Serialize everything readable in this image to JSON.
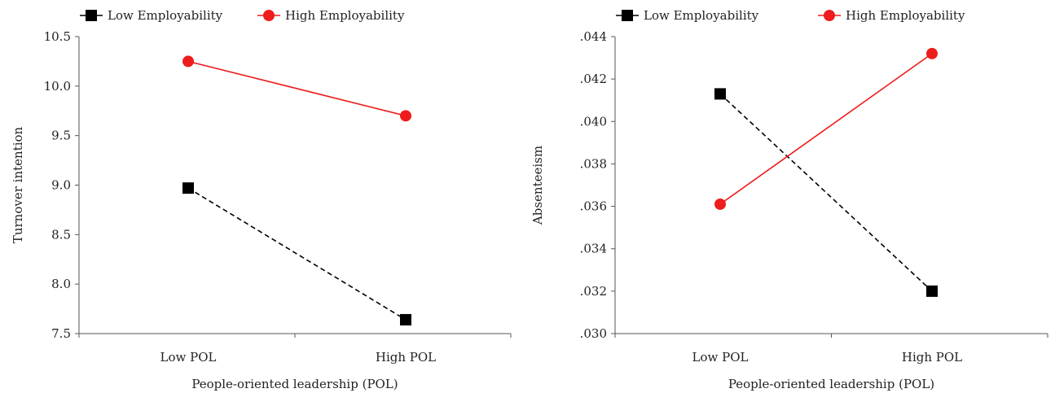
{
  "chart_data": [
    {
      "type": "line",
      "categories": [
        "Low POL",
        "High POL"
      ],
      "xlabel": "People-oriented leadership (POL)",
      "ylabel": "Turnover intention",
      "ylim": [
        7.5,
        10.5
      ],
      "yticks": [
        "7.5",
        "8.0",
        "8.5",
        "9.0",
        "9.5",
        "10.0",
        "10.5"
      ],
      "legend_position": "top",
      "series": [
        {
          "name": "Low Employability",
          "values": [
            8.97,
            7.64
          ],
          "color": "#000000",
          "marker": "square",
          "line": "dashed"
        },
        {
          "name": "High Employability",
          "values": [
            10.25,
            9.7
          ],
          "color": "#ee1c1c",
          "marker": "circle",
          "line": "solid"
        }
      ]
    },
    {
      "type": "line",
      "categories": [
        "Low POL",
        "High POL"
      ],
      "xlabel": "People-oriented leadership (POL)",
      "ylabel": "Absenteeism",
      "ylim": [
        0.03,
        0.044
      ],
      "yticks": [
        ".030",
        ".032",
        ".034",
        ".036",
        ".038",
        ".040",
        ".042",
        ".044"
      ],
      "legend_position": "top",
      "series": [
        {
          "name": "Low Employability",
          "values": [
            0.0413,
            0.032
          ],
          "color": "#000000",
          "marker": "square",
          "line": "dashed"
        },
        {
          "name": "High Employability",
          "values": [
            0.0361,
            0.0432
          ],
          "color": "#ee1c1c",
          "marker": "circle",
          "line": "solid"
        }
      ]
    }
  ]
}
